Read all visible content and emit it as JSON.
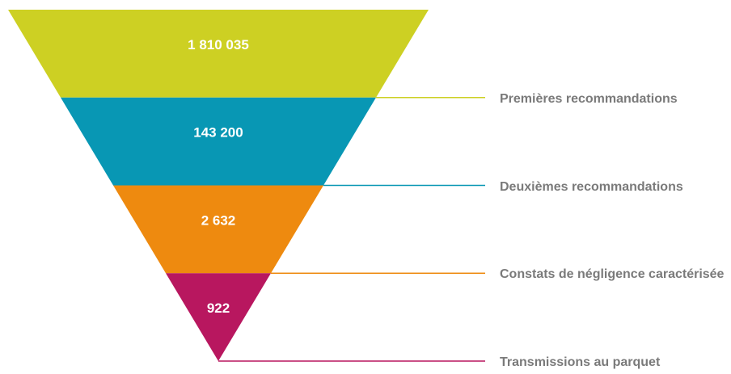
{
  "chart_data": {
    "type": "funnel",
    "categories": [
      "Premières recommandations",
      "Deuxièmes recommandations",
      "Constats de négligence caractérisée",
      "Transmissions au parquet"
    ],
    "values": [
      1810035,
      143200,
      2632,
      922
    ],
    "value_labels": [
      "1 810 035",
      "143 200",
      "2 632",
      "922"
    ],
    "colors": [
      "#cdd023",
      "#0897b4",
      "#ee8a0f",
      "#b8175f"
    ]
  }
}
